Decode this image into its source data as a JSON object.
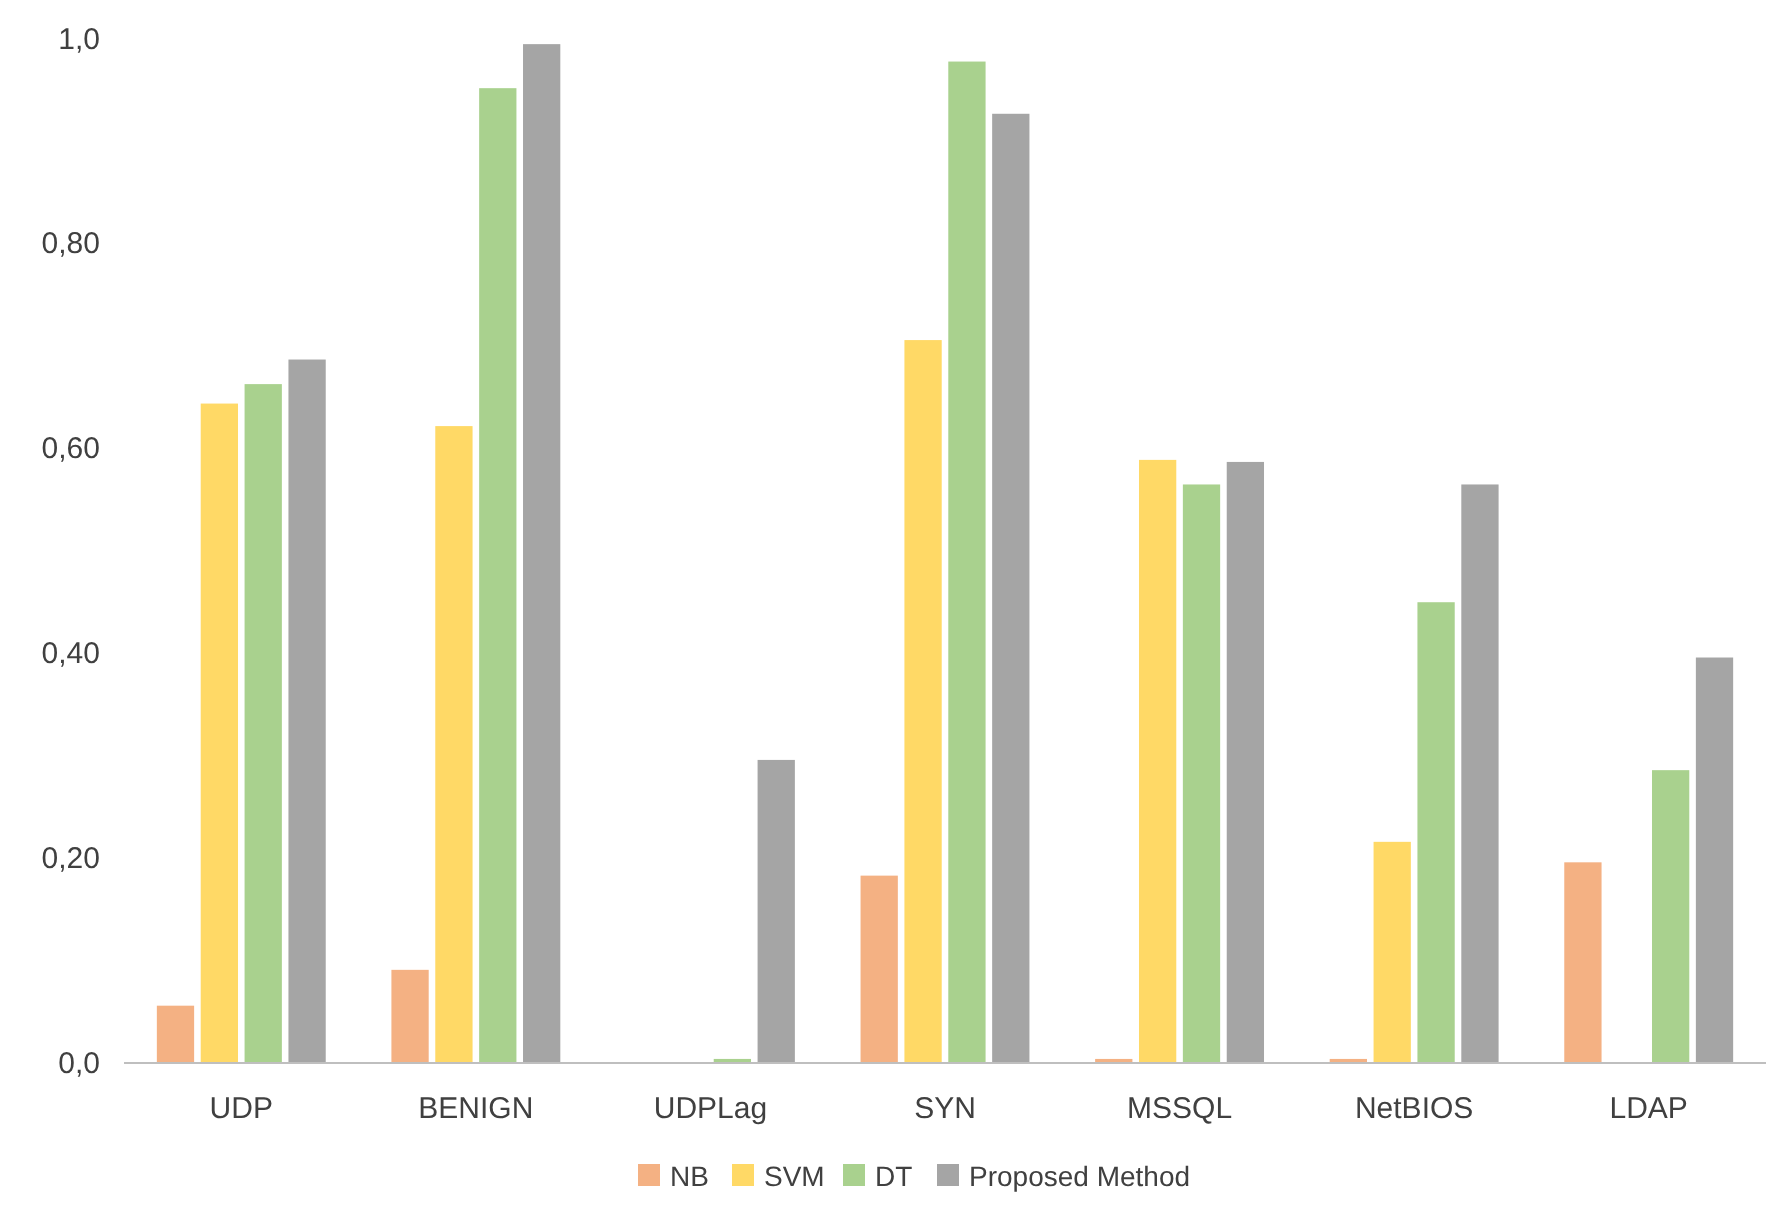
{
  "chart_data": {
    "type": "bar",
    "categories": [
      "UDP",
      "BENIGN",
      "UDPLag",
      "SYN",
      "MSSQL",
      "NetBIOS",
      "LDAP"
    ],
    "series": [
      {
        "name": "NB",
        "color": "#f4b183",
        "values": [
          0.055,
          0.09,
          0,
          0.182,
          0.003,
          0.003,
          0.195
        ]
      },
      {
        "name": "SVM",
        "color": "#ffd966",
        "values": [
          0.643,
          0.621,
          0,
          0.705,
          0.588,
          0.215,
          0
        ]
      },
      {
        "name": "DT",
        "color": "#a9d18e",
        "values": [
          0.662,
          0.951,
          0.003,
          0.977,
          0.564,
          0.449,
          0.285
        ]
      },
      {
        "name": "Proposed Method",
        "color": "#a5a5a5",
        "values": [
          0.686,
          0.994,
          0.295,
          0.926,
          0.586,
          0.564,
          0.395
        ]
      }
    ],
    "ylim": [
      0,
      1
    ],
    "yticks": [
      {
        "value": 0,
        "label": "0,0"
      },
      {
        "value": 0.2,
        "label": "0,20"
      },
      {
        "value": 0.4,
        "label": "0,40"
      },
      {
        "value": 0.6,
        "label": "0,60"
      },
      {
        "value": 0.8,
        "label": "0,80"
      },
      {
        "value": 1,
        "label": "1,0"
      }
    ],
    "grid": false,
    "legend": "bottom"
  }
}
